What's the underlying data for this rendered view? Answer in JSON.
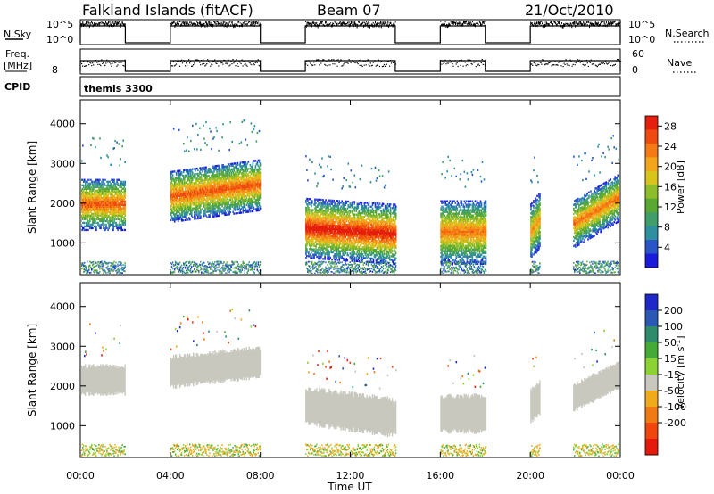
{
  "header": {
    "station": "Falkland Islands (fitACF)",
    "beam": "Beam 07",
    "date": "21/Oct/2010"
  },
  "strips": {
    "nsky_label": "N.Sky",
    "nsky_ticks": [
      "10^5",
      "10^0"
    ],
    "nsearch_label": "N.Search",
    "nsearch_ticks": [
      "10^5",
      "10^0"
    ],
    "freq_label": "Freq.",
    "freq_unit": "[MHz]",
    "freq_ticks": [
      "8"
    ],
    "nave_label": "Nave",
    "nave_ticks": [
      "60",
      "0"
    ],
    "cpid_label": "CPID",
    "cpid_value": "themis 3300"
  },
  "chart_data": [
    {
      "type": "heatmap",
      "panel": "power",
      "ylabel": "Slant Range [km]",
      "xlabel": "",
      "x_ticks": [
        "00:00",
        "04:00",
        "08:00",
        "12:00",
        "16:00",
        "20:00",
        "00:00"
      ],
      "y_ticks": [
        1000,
        2000,
        3000,
        4000
      ],
      "ylim": [
        200,
        4600
      ],
      "xlim_hours": [
        0,
        24
      ],
      "colorbar": {
        "label": "Power [dB]",
        "ticks": [
          4,
          8,
          12,
          16,
          20,
          24,
          28
        ],
        "range": [
          0,
          30
        ],
        "colors": [
          "#1a1adc",
          "#2a55c8",
          "#2e8fa0",
          "#3f9e6a",
          "#58a832",
          "#8ebd2a",
          "#d9c41c",
          "#f2a51a",
          "#f57a14",
          "#ef4a10",
          "#e51f0c"
        ]
      },
      "echo_regions": [
        {
          "t0": 0.0,
          "t1": 2.0,
          "center_start": 2000,
          "center_end": 2000,
          "width": 650,
          "peak_db": 24
        },
        {
          "t0": 4.0,
          "t1": 8.0,
          "center_start": 2200,
          "center_end": 2500,
          "width": 650,
          "peak_db": 24
        },
        {
          "t0": 10.0,
          "t1": 14.0,
          "center_start": 1400,
          "center_end": 1250,
          "width": 750,
          "peak_db": 28
        },
        {
          "t0": 16.0,
          "t1": 18.0,
          "center_start": 1300,
          "center_end": 1300,
          "width": 800,
          "peak_db": 22
        },
        {
          "t0": 20.0,
          "t1": 20.4,
          "center_start": 1300,
          "center_end": 1600,
          "width": 700,
          "peak_db": 20
        },
        {
          "t0": 21.9,
          "t1": 24.0,
          "center_start": 1500,
          "center_end": 2200,
          "width": 600,
          "peak_db": 22
        }
      ]
    },
    {
      "type": "heatmap",
      "panel": "velocity",
      "ylabel": "Slant Range [km]",
      "xlabel": "Time UT",
      "x_ticks": [
        "00:00",
        "04:00",
        "08:00",
        "12:00",
        "16:00",
        "20:00",
        "00:00"
      ],
      "y_ticks": [
        1000,
        2000,
        3000,
        4000
      ],
      "ylim": [
        200,
        4600
      ],
      "xlim_hours": [
        0,
        24
      ],
      "colorbar": {
        "label": "Velocity [m s",
        "label_exp": "-1",
        "label_end": "]",
        "ticks": [
          200,
          100,
          50,
          15,
          -15,
          -50,
          -100,
          -200
        ],
        "colors": [
          "#1e28c8",
          "#2a58b4",
          "#2e8c6c",
          "#44ac36",
          "#8cd232",
          "#c8c8be",
          "#f0aa1a",
          "#f07a14",
          "#f0460e",
          "#e61a0a"
        ]
      },
      "echo_regions": [
        {
          "t0": 0.0,
          "t1": 2.0,
          "center_start": 2150,
          "center_end": 2150,
          "width": 700,
          "velocity": 0
        },
        {
          "t0": 4.0,
          "t1": 8.0,
          "center_start": 2350,
          "center_end": 2600,
          "width": 750,
          "velocity": 0
        },
        {
          "t0": 10.0,
          "t1": 14.0,
          "center_start": 1500,
          "center_end": 1200,
          "width": 900,
          "velocity": 0
        },
        {
          "t0": 16.0,
          "t1": 18.0,
          "center_start": 1300,
          "center_end": 1300,
          "width": 900,
          "velocity": 0
        },
        {
          "t0": 20.0,
          "t1": 20.4,
          "center_start": 1500,
          "center_end": 1700,
          "width": 800,
          "velocity": 0
        },
        {
          "t0": 21.9,
          "t1": 24.0,
          "center_start": 1700,
          "center_end": 2300,
          "width": 650,
          "velocity": 0
        }
      ]
    }
  ]
}
